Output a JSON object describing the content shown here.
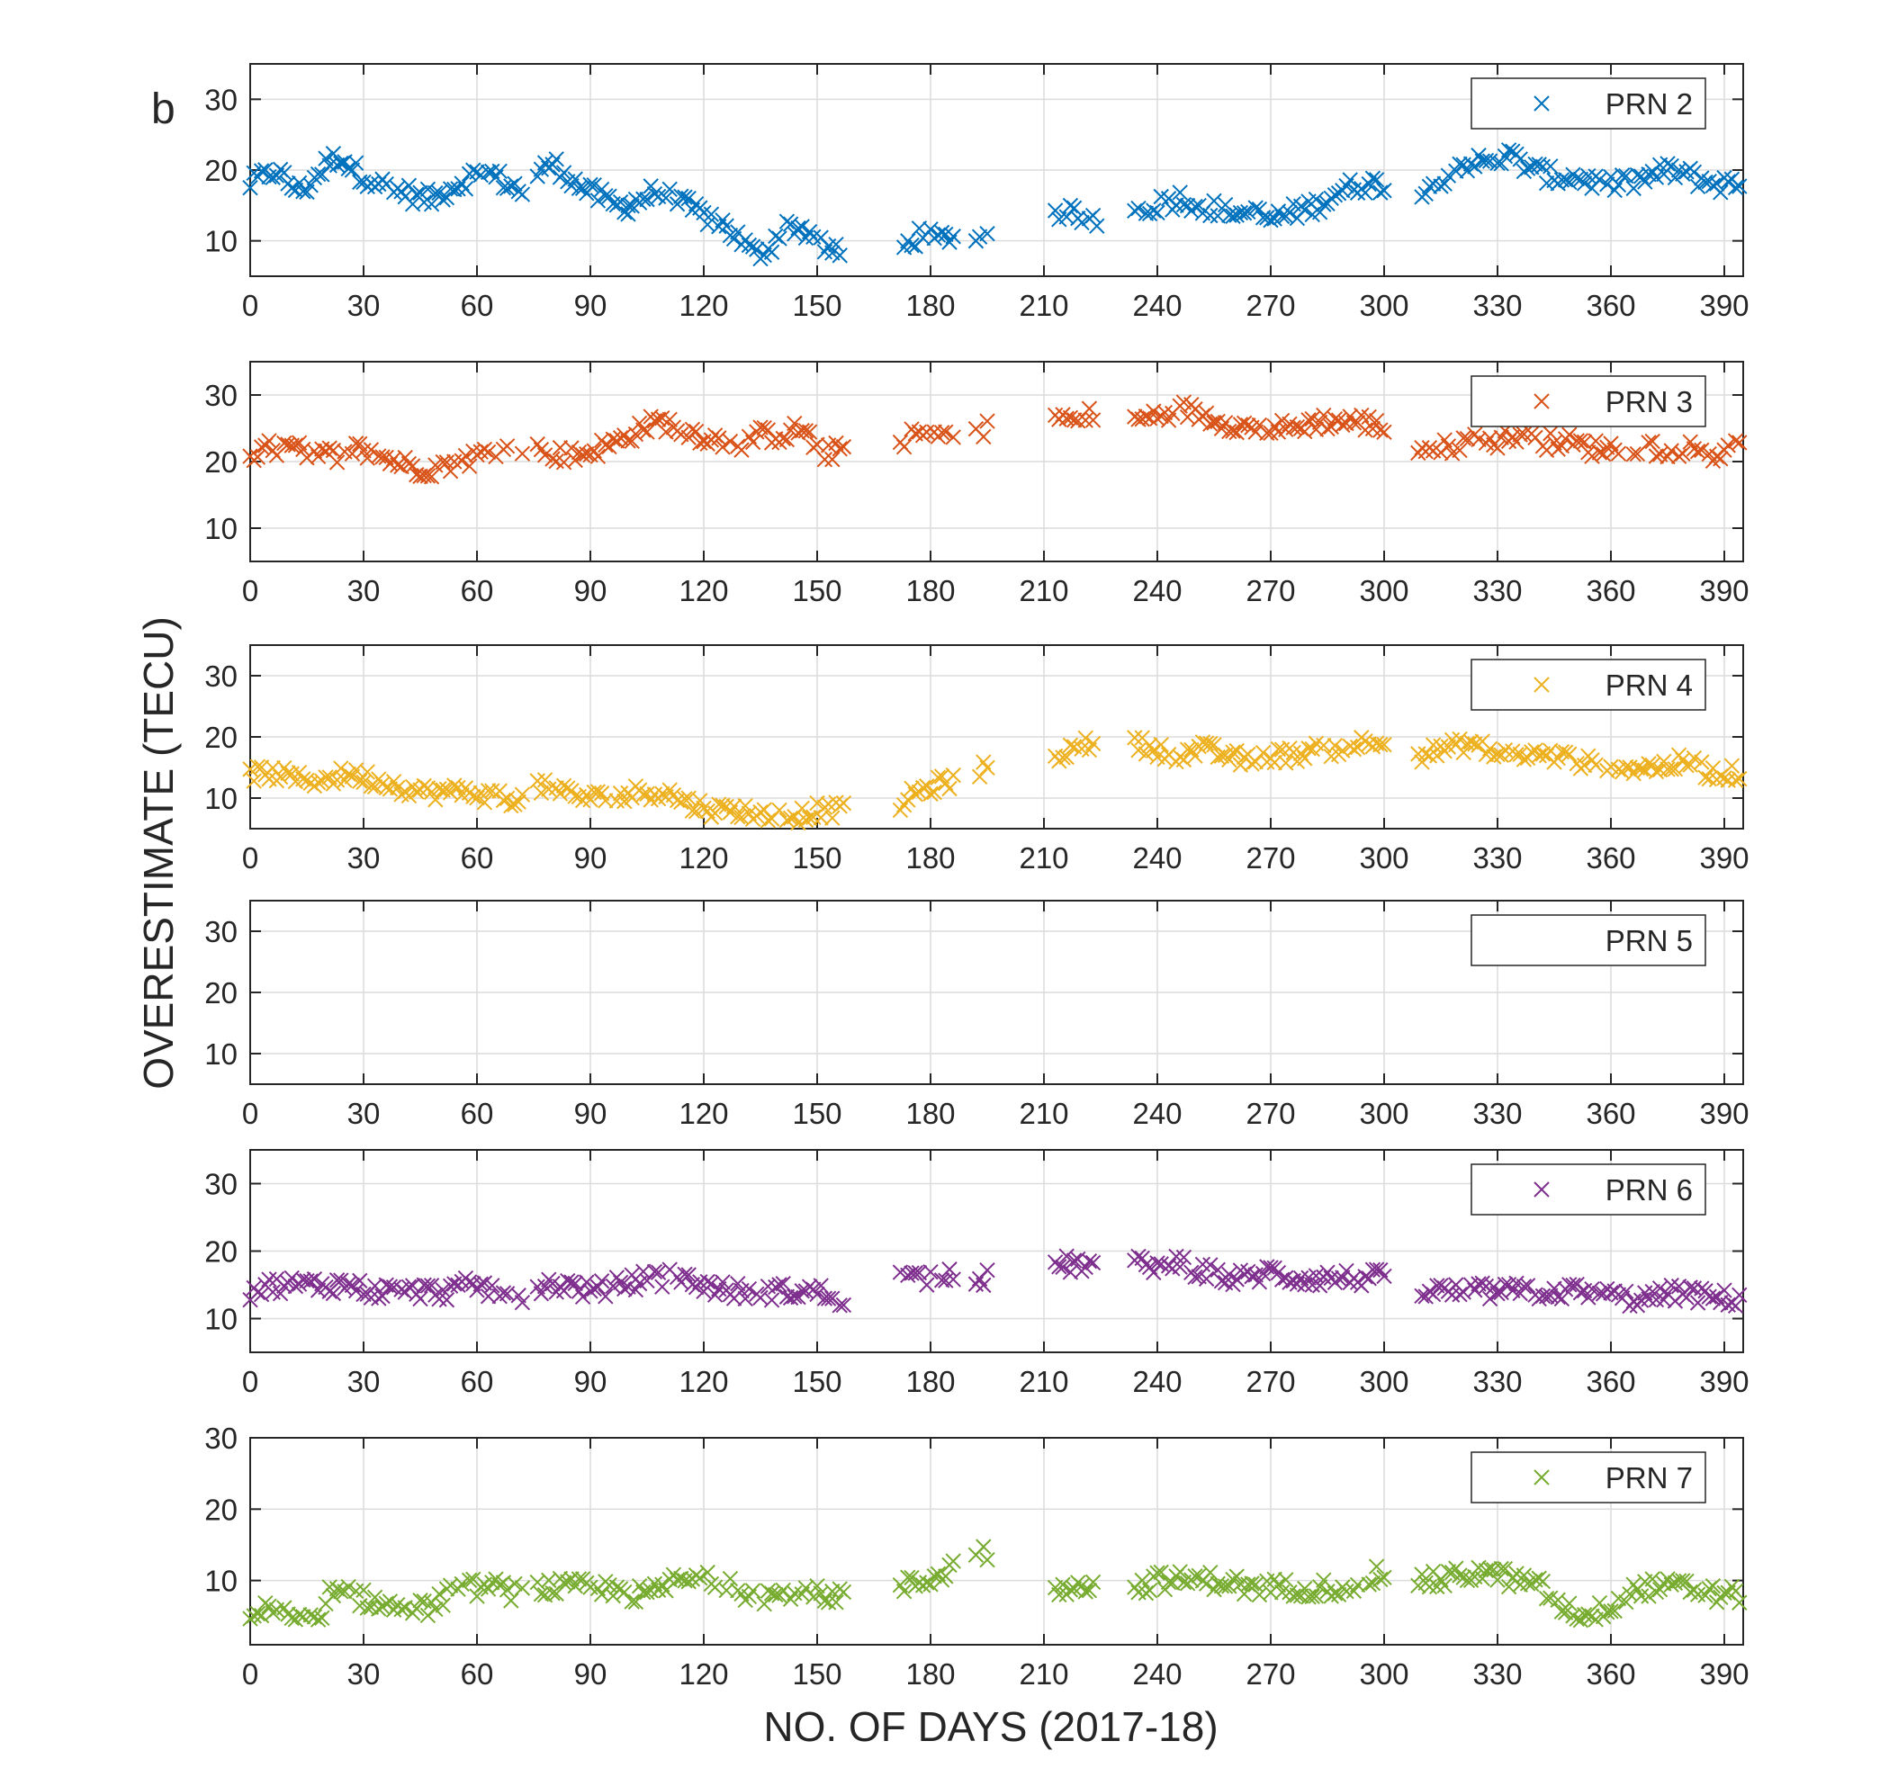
{
  "figure": {
    "panel_label": "b",
    "xlabel": "NO. OF DAYS (2017-18)",
    "ylabel": "OVERESTIMATE (TECU)"
  },
  "chart_data": [
    {
      "type": "scatter",
      "legend": "PRN 2",
      "color": "#0072BD",
      "marker": "x",
      "xlim": [
        0,
        395
      ],
      "ylim": [
        5,
        35
      ],
      "xticks": [
        0,
        30,
        60,
        90,
        120,
        150,
        180,
        210,
        240,
        270,
        300,
        330,
        360,
        390
      ],
      "yticks": [
        10,
        20,
        30
      ],
      "legend_position": "top-right",
      "grid": true,
      "segments": [
        {
          "x0": 0,
          "x1": 72,
          "base": [
            18,
            19,
            20,
            18,
            17,
            19,
            21,
            22,
            20,
            19,
            18,
            17,
            17,
            16,
            16,
            17,
            18,
            19,
            20,
            19,
            18,
            17
          ]
        },
        {
          "x0": 76,
          "x1": 100,
          "base": [
            19,
            21,
            20,
            18,
            17,
            16,
            15,
            15
          ]
        },
        {
          "x0": 100,
          "x1": 156,
          "base": [
            15,
            16,
            17,
            16,
            15,
            14,
            13,
            12,
            10,
            8,
            9,
            12,
            12,
            11,
            9,
            8
          ]
        },
        {
          "x0": 173,
          "x1": 186,
          "base": [
            9,
            11,
            10,
            11
          ]
        },
        {
          "x0": 192,
          "x1": 195,
          "base": [
            10,
            12
          ]
        },
        {
          "x0": 213,
          "x1": 224,
          "base": [
            13,
            14,
            13
          ]
        },
        {
          "x0": 234,
          "x1": 300,
          "base": [
            14,
            15,
            16,
            15,
            14,
            14,
            13,
            14,
            15,
            17,
            18,
            18
          ]
        },
        {
          "x0": 309,
          "x1": 394,
          "base": [
            16,
            19,
            21,
            21,
            22,
            20,
            19,
            19,
            18,
            18,
            19,
            20,
            19,
            18,
            18
          ]
        }
      ]
    },
    {
      "type": "scatter",
      "legend": "PRN 3",
      "color": "#D95319",
      "marker": "x",
      "xlim": [
        0,
        395
      ],
      "ylim": [
        5,
        35
      ],
      "xticks": [
        0,
        30,
        60,
        90,
        120,
        150,
        180,
        210,
        240,
        270,
        300,
        330,
        360,
        390
      ],
      "yticks": [
        10,
        20,
        30
      ],
      "legend_position": "top-right",
      "grid": true,
      "segments": [
        {
          "x0": 0,
          "x1": 72,
          "base": [
            21,
            22,
            22,
            21,
            21,
            22,
            21,
            20,
            19,
            19,
            20,
            21,
            22,
            21
          ]
        },
        {
          "x0": 76,
          "x1": 157,
          "base": [
            22,
            21,
            21,
            22,
            23,
            25,
            26,
            25,
            24,
            23,
            23,
            24,
            24,
            25,
            21,
            22
          ]
        },
        {
          "x0": 172,
          "x1": 186,
          "base": [
            23,
            24,
            24,
            24
          ]
        },
        {
          "x0": 192,
          "x1": 195,
          "base": [
            25,
            25
          ]
        },
        {
          "x0": 213,
          "x1": 223,
          "base": [
            27,
            26,
            27
          ]
        },
        {
          "x0": 234,
          "x1": 300,
          "base": [
            26,
            27,
            28,
            27,
            26,
            25,
            25,
            25,
            26,
            26,
            26,
            25
          ]
        },
        {
          "x0": 309,
          "x1": 394,
          "base": [
            22,
            22,
            23,
            23,
            24,
            23,
            23,
            22,
            22,
            22,
            22,
            22,
            21,
            22
          ]
        }
      ]
    },
    {
      "type": "scatter",
      "legend": "PRN 4",
      "color": "#EDB120",
      "marker": "x",
      "xlim": [
        0,
        395
      ],
      "ylim": [
        5,
        35
      ],
      "xticks": [
        0,
        30,
        60,
        90,
        120,
        150,
        180,
        210,
        240,
        270,
        300,
        330,
        360,
        390
      ],
      "yticks": [
        10,
        20,
        30
      ],
      "legend_position": "top-right",
      "grid": true,
      "segments": [
        {
          "x0": 0,
          "x1": 72,
          "base": [
            14,
            14,
            13,
            13,
            14,
            13,
            12,
            11,
            11,
            11,
            10,
            10
          ]
        },
        {
          "x0": 76,
          "x1": 157,
          "base": [
            12,
            11,
            10,
            10,
            11,
            11,
            9,
            8,
            8,
            7,
            7,
            8,
            8
          ]
        },
        {
          "x0": 172,
          "x1": 186,
          "base": [
            9,
            11,
            12,
            13
          ]
        },
        {
          "x0": 192,
          "x1": 195,
          "base": [
            14,
            15
          ]
        },
        {
          "x0": 213,
          "x1": 223,
          "base": [
            17,
            18,
            19
          ]
        },
        {
          "x0": 234,
          "x1": 300,
          "base": [
            19,
            18,
            17,
            18,
            17,
            16,
            17,
            17,
            18,
            18,
            19,
            20
          ]
        },
        {
          "x0": 309,
          "x1": 394,
          "base": [
            17,
            18,
            19,
            17,
            17,
            17,
            16,
            15,
            15,
            15,
            16,
            14,
            14
          ]
        }
      ]
    },
    {
      "type": "scatter",
      "legend": "PRN 5",
      "color": "#7E2F8E",
      "marker": "x",
      "xlim": [
        0,
        395
      ],
      "ylim": [
        5,
        35
      ],
      "xticks": [
        0,
        30,
        60,
        90,
        120,
        150,
        180,
        210,
        240,
        270,
        300,
        330,
        360,
        390
      ],
      "yticks": [
        10,
        20,
        30
      ],
      "legend_position": "top-right",
      "grid": true,
      "legend_marker": false,
      "segments": []
    },
    {
      "type": "scatter",
      "legend": "PRN 6",
      "color": "#7E2F8E",
      "marker": "x",
      "xlim": [
        0,
        395
      ],
      "ylim": [
        5,
        35
      ],
      "xticks": [
        0,
        30,
        60,
        90,
        120,
        150,
        180,
        210,
        240,
        270,
        300,
        330,
        360,
        390
      ],
      "yticks": [
        10,
        20,
        30
      ],
      "legend_position": "top-right",
      "grid": true,
      "segments": [
        {
          "x0": 0,
          "x1": 72,
          "base": [
            14,
            15,
            15,
            15,
            15,
            14,
            14,
            14,
            14,
            15,
            14,
            13
          ]
        },
        {
          "x0": 76,
          "x1": 157,
          "base": [
            15,
            15,
            14,
            15,
            16,
            16,
            15,
            14,
            14,
            14,
            14,
            13
          ]
        },
        {
          "x0": 172,
          "x1": 186,
          "base": [
            16,
            16,
            17
          ]
        },
        {
          "x0": 192,
          "x1": 195,
          "base": [
            16
          ]
        },
        {
          "x0": 213,
          "x1": 223,
          "base": [
            18,
            18,
            18
          ]
        },
        {
          "x0": 234,
          "x1": 300,
          "base": [
            18,
            18,
            18,
            17,
            16,
            16,
            17,
            16,
            16,
            16,
            16,
            16
          ]
        },
        {
          "x0": 309,
          "x1": 394,
          "base": [
            14,
            14,
            14,
            14,
            14,
            14,
            14,
            13,
            13,
            14,
            13,
            13
          ]
        }
      ]
    },
    {
      "type": "scatter",
      "legend": "PRN 7",
      "color": "#77AC30",
      "marker": "x",
      "xlim": [
        0,
        395
      ],
      "ylim": [
        1,
        30
      ],
      "xticks": [
        0,
        30,
        60,
        90,
        120,
        150,
        180,
        210,
        240,
        270,
        300,
        330,
        360,
        390
      ],
      "yticks": [
        10,
        20,
        30
      ],
      "legend_position": "top-right",
      "grid": true,
      "segments": [
        {
          "x0": 0,
          "x1": 19,
          "base": [
            5,
            6,
            5,
            4,
            4
          ]
        },
        {
          "x0": 20,
          "x1": 72,
          "base": [
            8,
            8,
            7,
            6,
            6,
            8,
            9,
            9,
            8
          ]
        },
        {
          "x0": 76,
          "x1": 157,
          "base": [
            9,
            9,
            9,
            8,
            8,
            10,
            10,
            9,
            8,
            8,
            8,
            8
          ]
        },
        {
          "x0": 172,
          "x1": 186,
          "base": [
            9,
            10,
            12
          ]
        },
        {
          "x0": 192,
          "x1": 195,
          "base": [
            14,
            14
          ]
        },
        {
          "x0": 213,
          "x1": 223,
          "base": [
            8,
            10,
            9
          ]
        },
        {
          "x0": 234,
          "x1": 300,
          "base": [
            9,
            10,
            10,
            10,
            10,
            9,
            9,
            9,
            9,
            9,
            10,
            11
          ]
        },
        {
          "x0": 309,
          "x1": 394,
          "base": [
            10,
            10,
            11,
            11,
            10,
            9,
            6,
            5,
            7,
            9,
            9,
            9,
            8,
            8
          ]
        }
      ]
    }
  ]
}
